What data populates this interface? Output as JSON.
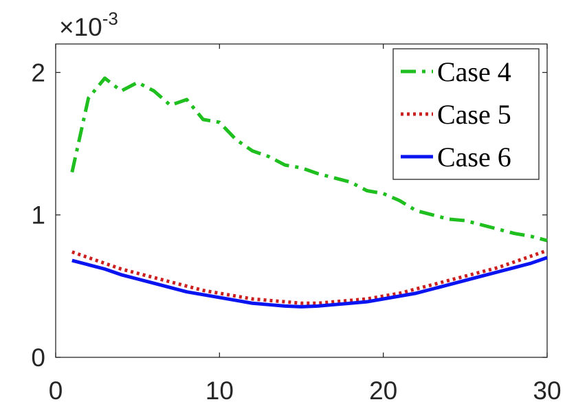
{
  "chart_data": {
    "type": "line",
    "x_ticks": [
      0,
      10,
      20,
      30
    ],
    "y_ticks": [
      0,
      1,
      2
    ],
    "xlim": [
      0,
      30
    ],
    "ylim": [
      0,
      2.2
    ],
    "y_exponent_base": "×10",
    "y_exponent": "-3",
    "grid": false,
    "legend_position": "top-right",
    "series": [
      {
        "name": "Case 4",
        "color": "#1fbf1f",
        "style": "dashdot",
        "x": [
          1,
          2,
          3,
          4,
          5,
          6,
          7,
          8,
          9,
          10,
          11,
          12,
          13,
          14,
          15,
          16,
          17,
          18,
          19,
          20,
          21,
          22,
          23,
          24,
          25,
          26,
          27,
          28,
          29,
          30
        ],
        "y": [
          1.3,
          1.82,
          1.96,
          1.87,
          1.93,
          1.87,
          1.77,
          1.81,
          1.67,
          1.65,
          1.53,
          1.45,
          1.41,
          1.35,
          1.33,
          1.29,
          1.26,
          1.23,
          1.17,
          1.15,
          1.1,
          1.03,
          1.0,
          0.97,
          0.96,
          0.93,
          0.9,
          0.87,
          0.85,
          0.82
        ]
      },
      {
        "name": "Case 5",
        "color": "#cc1f1f",
        "style": "dotted",
        "x": [
          1,
          2,
          3,
          4,
          5,
          6,
          7,
          8,
          9,
          10,
          11,
          12,
          13,
          14,
          15,
          16,
          17,
          18,
          19,
          20,
          21,
          22,
          23,
          24,
          25,
          26,
          27,
          28,
          29,
          30
        ],
        "y": [
          0.74,
          0.7,
          0.66,
          0.62,
          0.59,
          0.56,
          0.53,
          0.5,
          0.47,
          0.45,
          0.43,
          0.41,
          0.4,
          0.39,
          0.38,
          0.38,
          0.39,
          0.4,
          0.41,
          0.43,
          0.45,
          0.48,
          0.51,
          0.54,
          0.57,
          0.6,
          0.63,
          0.67,
          0.71,
          0.75
        ]
      },
      {
        "name": "Case 6",
        "color": "#0a14f0",
        "style": "solid",
        "x": [
          1,
          2,
          3,
          4,
          5,
          6,
          7,
          8,
          9,
          10,
          11,
          12,
          13,
          14,
          15,
          16,
          17,
          18,
          19,
          20,
          21,
          22,
          23,
          24,
          25,
          26,
          27,
          28,
          29,
          30
        ],
        "y": [
          0.68,
          0.65,
          0.62,
          0.58,
          0.55,
          0.52,
          0.49,
          0.46,
          0.44,
          0.42,
          0.4,
          0.38,
          0.37,
          0.36,
          0.355,
          0.36,
          0.37,
          0.38,
          0.39,
          0.41,
          0.43,
          0.45,
          0.48,
          0.51,
          0.54,
          0.57,
          0.6,
          0.63,
          0.66,
          0.7
        ]
      }
    ]
  }
}
